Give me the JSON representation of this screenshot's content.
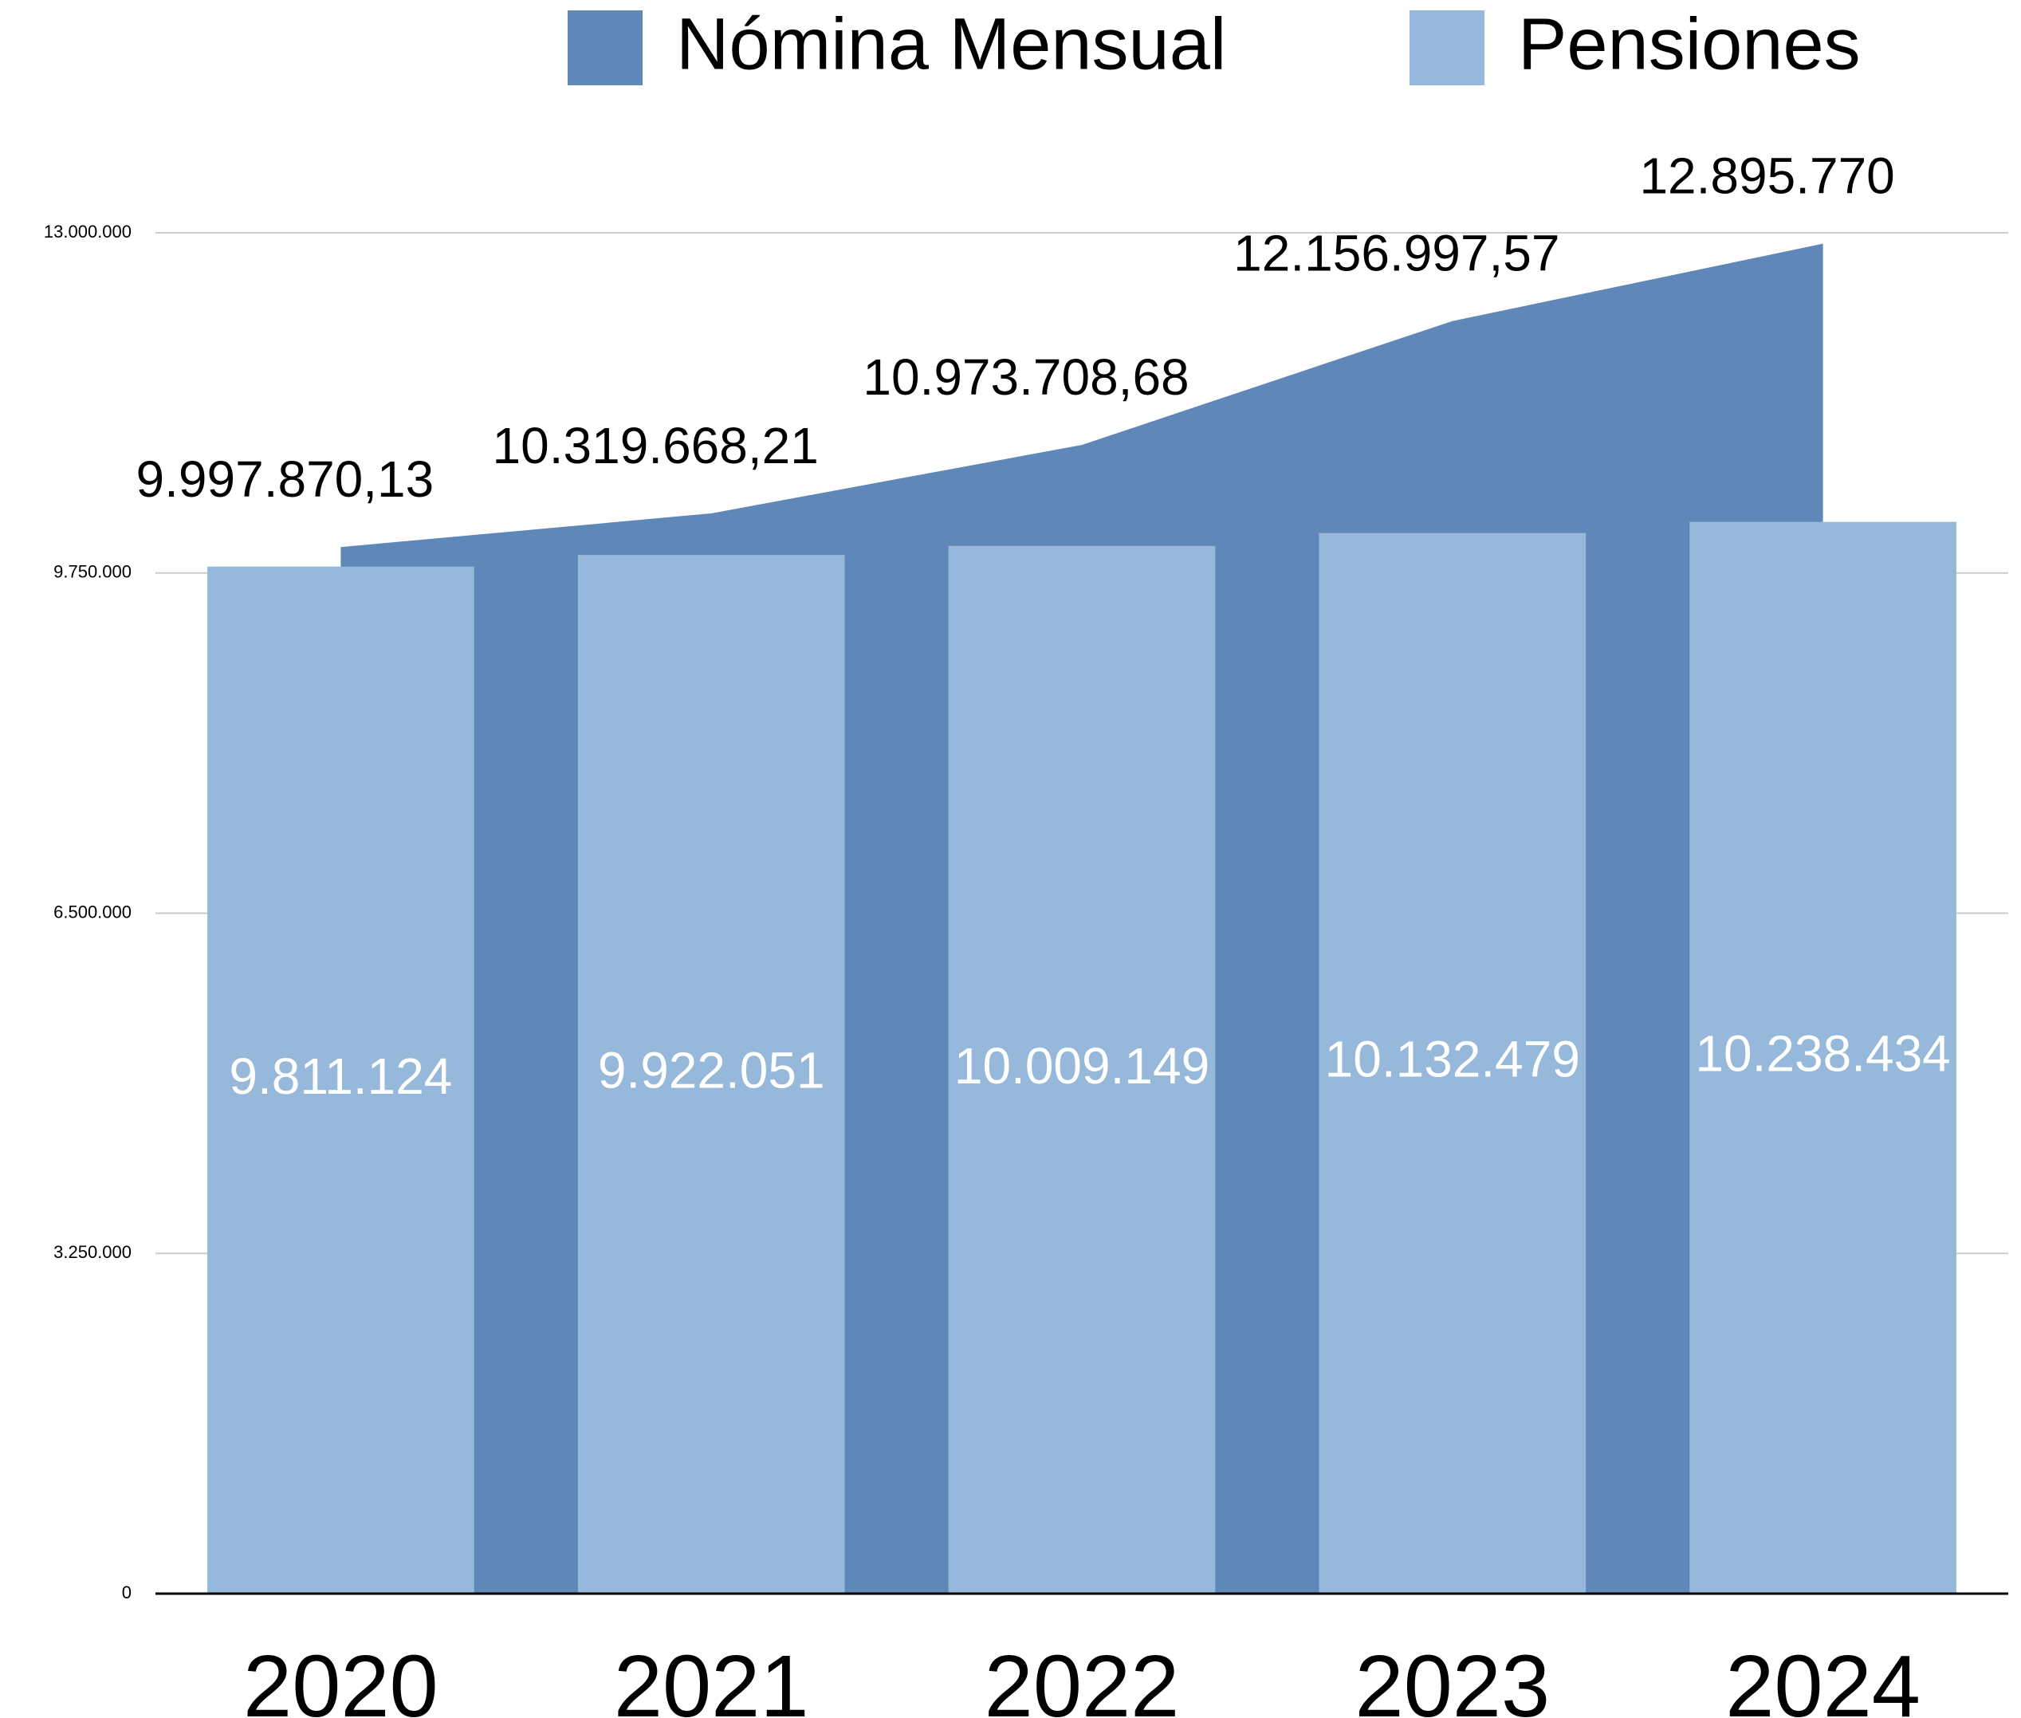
{
  "chart_data": {
    "type": "area_bar",
    "categories": [
      "2020",
      "2021",
      "2022",
      "2023",
      "2024"
    ],
    "series": [
      {
        "name": "Nómina Mensual",
        "color": "#5f87b8",
        "kind": "area",
        "values": [
          9997870.13,
          10319668.21,
          10973708.68,
          12156997.57,
          12895770
        ],
        "value_labels": [
          "9.997.870,13",
          "10.319.668,21",
          "10.973.708,68",
          "12.156.997,57",
          "12.895.770"
        ]
      },
      {
        "name": "Pensiones",
        "color": "#96b8da",
        "kind": "bar",
        "values": [
          9811124,
          9922051,
          10009149,
          10132479,
          10238434
        ],
        "value_labels": [
          "9.811.124",
          "9.922.051",
          "10.009.149",
          "10.132.479",
          "10.238.434"
        ]
      }
    ],
    "ylim": [
      0,
      13000000
    ],
    "yticks": [
      0,
      {
        "value": 3250000,
        "label": "3.250.000"
      },
      {
        "value": 6500000,
        "label": "6.500.000"
      },
      {
        "value": 9750000,
        "label": "9.750.000"
      },
      {
        "value": 13000000,
        "label": "13.000.000"
      }
    ],
    "grid": true,
    "legend": "top"
  }
}
